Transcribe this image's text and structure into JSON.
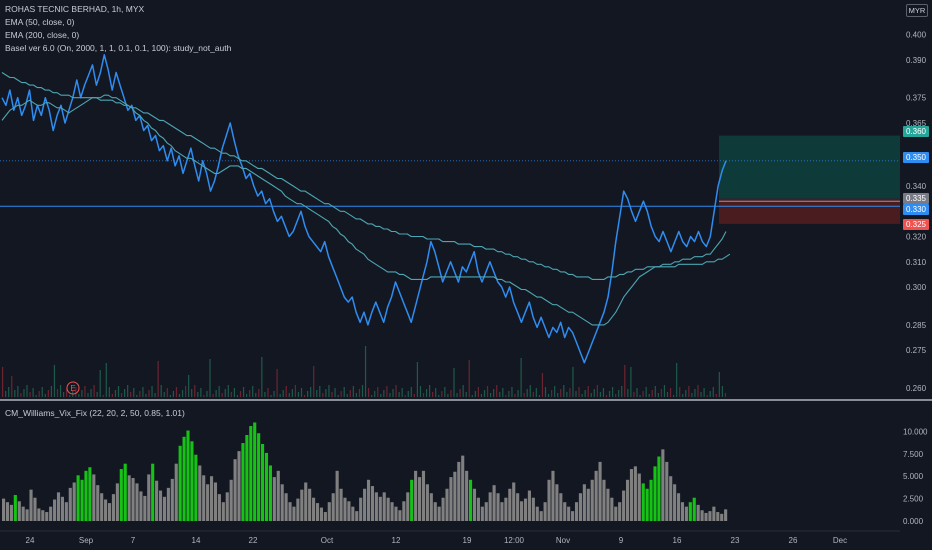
{
  "header": {
    "symbol_line": "ROHAS TECNIC BERHAD, 1h, MYX",
    "currency": "MYR",
    "studies": [
      "EMA (50, close, 0)",
      "EMA (200, close, 0)",
      "Basel ver 6.0 (On, 2000, 1, 1, 0.1, 0.1, 100): study_not_auth"
    ],
    "lower_study": "CM_Williams_Vix_Fix (22, 20, 2, 50, 0.85, 1.01)"
  },
  "colors": {
    "background": "#131722",
    "price_line": "#2f8cf0",
    "ema": "#4ca6b3",
    "horizontal_line": "#2f8cf0",
    "target_zone": "#0f3a3a",
    "stop_zone": "#4a1c1f",
    "vix_gray": "#808080",
    "vix_green": "#16c216",
    "volume_up": "#1e5a4a",
    "volume_down": "#6b2530"
  },
  "badges": [
    {
      "label": "0.360",
      "color": "#26a69a"
    },
    {
      "label": "0.350",
      "color": "#2f8cf0"
    },
    {
      "label": "0.335",
      "color": "#787b86"
    },
    {
      "label": "0.330",
      "color": "#2f8cf0"
    },
    {
      "label": "0.325",
      "color": "#ef5350"
    }
  ],
  "earnings_marker": "E",
  "chart_data": [
    {
      "type": "line",
      "name": "price",
      "y_axis_ticks": [
        "0.400",
        "0.390",
        "0.375",
        "0.365",
        "0.340",
        "0.320",
        "0.310",
        "0.300",
        "0.285",
        "0.275",
        "0.260"
      ],
      "x_axis_ticks": [
        "24",
        "Sep",
        "7",
        "14",
        "22",
        "Oct",
        "12",
        "19",
        "12:00",
        "Nov",
        "9",
        "16",
        "23",
        "26",
        "Dec"
      ],
      "ylim": [
        0.258,
        0.405
      ],
      "series": [
        {
          "name": "price",
          "values": [
            0.375,
            0.372,
            0.378,
            0.37,
            0.375,
            0.368,
            0.372,
            0.378,
            0.366,
            0.372,
            0.368,
            0.375,
            0.37,
            0.362,
            0.368,
            0.372,
            0.365,
            0.37,
            0.375,
            0.382,
            0.375,
            0.38,
            0.384,
            0.388,
            0.38,
            0.385,
            0.392,
            0.386,
            0.378,
            0.385,
            0.38,
            0.375,
            0.37,
            0.372,
            0.366,
            0.368,
            0.362,
            0.364,
            0.358,
            0.36,
            0.354,
            0.356,
            0.35,
            0.355,
            0.348,
            0.352,
            0.345,
            0.35,
            0.355,
            0.348,
            0.342,
            0.35,
            0.345,
            0.338,
            0.342,
            0.348,
            0.355,
            0.36,
            0.365,
            0.358,
            0.352,
            0.348,
            0.343,
            0.345,
            0.34,
            0.336,
            0.338,
            0.333,
            0.335,
            0.33,
            0.326,
            0.328,
            0.324,
            0.32,
            0.322,
            0.326,
            0.33,
            0.324,
            0.32,
            0.318,
            0.316,
            0.314,
            0.318,
            0.312,
            0.308,
            0.304,
            0.3,
            0.296,
            0.294,
            0.296,
            0.29,
            0.286,
            0.29,
            0.285,
            0.29,
            0.294,
            0.29,
            0.286,
            0.292,
            0.296,
            0.302,
            0.298,
            0.294,
            0.29,
            0.286,
            0.292,
            0.298,
            0.304,
            0.31,
            0.318,
            0.314,
            0.308,
            0.302,
            0.306,
            0.31,
            0.306,
            0.302,
            0.308,
            0.306,
            0.31,
            0.314,
            0.306,
            0.302,
            0.306,
            0.31,
            0.306,
            0.302,
            0.3,
            0.296,
            0.3,
            0.294,
            0.29,
            0.286,
            0.29,
            0.294,
            0.288,
            0.284,
            0.288,
            0.284,
            0.28,
            0.284,
            0.282,
            0.286,
            0.28,
            0.284,
            0.282,
            0.278,
            0.274,
            0.27,
            0.274,
            0.278,
            0.282,
            0.286,
            0.29,
            0.296,
            0.306,
            0.318,
            0.328,
            0.338,
            0.335,
            0.33,
            0.326,
            0.33,
            0.334,
            0.33,
            0.324,
            0.32,
            0.318,
            0.322,
            0.318,
            0.314,
            0.318,
            0.322,
            0.318,
            0.316,
            0.32,
            0.318,
            0.322,
            0.318,
            0.316,
            0.32,
            0.33,
            0.34,
            0.346,
            0.35
          ]
        },
        {
          "name": "EMA 50",
          "values": [
            0.366,
            0.368,
            0.37,
            0.371,
            0.372,
            0.372,
            0.373,
            0.374,
            0.373,
            0.372,
            0.372,
            0.373,
            0.373,
            0.372,
            0.371,
            0.371,
            0.37,
            0.369,
            0.37,
            0.371,
            0.372,
            0.373,
            0.374,
            0.375,
            0.375,
            0.375,
            0.376,
            0.376,
            0.375,
            0.375,
            0.374,
            0.373,
            0.372,
            0.371,
            0.369,
            0.368,
            0.366,
            0.365,
            0.363,
            0.362,
            0.36,
            0.359,
            0.357,
            0.356,
            0.354,
            0.353,
            0.352,
            0.351,
            0.351,
            0.35,
            0.349,
            0.348,
            0.347,
            0.346,
            0.345,
            0.345,
            0.346,
            0.347,
            0.348,
            0.348,
            0.348,
            0.347,
            0.347,
            0.346,
            0.345,
            0.344,
            0.343,
            0.342,
            0.341,
            0.34,
            0.339,
            0.338,
            0.336,
            0.335,
            0.334,
            0.333,
            0.333,
            0.332,
            0.331,
            0.33,
            0.329,
            0.328,
            0.327,
            0.326,
            0.324,
            0.323,
            0.321,
            0.32,
            0.318,
            0.317,
            0.315,
            0.314,
            0.313,
            0.311,
            0.31,
            0.309,
            0.308,
            0.307,
            0.306,
            0.306,
            0.306,
            0.305,
            0.305,
            0.304,
            0.303,
            0.303,
            0.303,
            0.303,
            0.303,
            0.304,
            0.304,
            0.304,
            0.304,
            0.304,
            0.304,
            0.304,
            0.304,
            0.304,
            0.304,
            0.304,
            0.304,
            0.304,
            0.304,
            0.304,
            0.304,
            0.304,
            0.303,
            0.303,
            0.302,
            0.302,
            0.301,
            0.3,
            0.299,
            0.299,
            0.298,
            0.297,
            0.296,
            0.296,
            0.295,
            0.294,
            0.293,
            0.293,
            0.292,
            0.291,
            0.29,
            0.29,
            0.289,
            0.288,
            0.287,
            0.286,
            0.285,
            0.285,
            0.285,
            0.285,
            0.286,
            0.288,
            0.29,
            0.293,
            0.296,
            0.298,
            0.3,
            0.302,
            0.304,
            0.305,
            0.306,
            0.307,
            0.308,
            0.308,
            0.309,
            0.309,
            0.309,
            0.31,
            0.31,
            0.311,
            0.311,
            0.311,
            0.312,
            0.312,
            0.312,
            0.313,
            0.313,
            0.315,
            0.317,
            0.319,
            0.322
          ]
        },
        {
          "name": "EMA 200",
          "values": [
            0.385,
            0.384,
            0.383,
            0.383,
            0.382,
            0.381,
            0.381,
            0.38,
            0.38,
            0.379,
            0.379,
            0.378,
            0.378,
            0.377,
            0.377,
            0.376,
            0.376,
            0.376,
            0.375,
            0.375,
            0.375,
            0.375,
            0.375,
            0.375,
            0.375,
            0.374,
            0.374,
            0.374,
            0.374,
            0.373,
            0.373,
            0.372,
            0.372,
            0.371,
            0.371,
            0.37,
            0.369,
            0.369,
            0.368,
            0.367,
            0.366,
            0.366,
            0.365,
            0.364,
            0.363,
            0.362,
            0.361,
            0.36,
            0.36,
            0.359,
            0.358,
            0.357,
            0.356,
            0.355,
            0.355,
            0.354,
            0.353,
            0.353,
            0.352,
            0.352,
            0.351,
            0.35,
            0.35,
            0.349,
            0.348,
            0.347,
            0.347,
            0.346,
            0.345,
            0.344,
            0.343,
            0.343,
            0.342,
            0.341,
            0.34,
            0.339,
            0.338,
            0.338,
            0.337,
            0.336,
            0.335,
            0.334,
            0.333,
            0.333,
            0.332,
            0.331,
            0.33,
            0.33,
            0.329,
            0.328,
            0.327,
            0.327,
            0.326,
            0.325,
            0.325,
            0.324,
            0.324,
            0.323,
            0.323,
            0.322,
            0.322,
            0.321,
            0.321,
            0.321,
            0.32,
            0.32,
            0.32,
            0.32,
            0.319,
            0.319,
            0.319,
            0.319,
            0.318,
            0.318,
            0.318,
            0.318,
            0.317,
            0.317,
            0.317,
            0.317,
            0.316,
            0.316,
            0.316,
            0.315,
            0.315,
            0.315,
            0.314,
            0.314,
            0.313,
            0.313,
            0.312,
            0.312,
            0.311,
            0.311,
            0.31,
            0.31,
            0.309,
            0.309,
            0.308,
            0.308,
            0.307,
            0.307,
            0.306,
            0.306,
            0.305,
            0.305,
            0.304,
            0.304,
            0.304,
            0.304,
            0.303,
            0.303,
            0.303,
            0.303,
            0.304,
            0.304,
            0.304,
            0.305,
            0.305,
            0.306,
            0.306,
            0.307,
            0.307,
            0.307,
            0.308,
            0.308,
            0.308,
            0.308,
            0.308,
            0.308,
            0.308,
            0.308,
            0.309,
            0.309,
            0.309,
            0.309,
            0.309,
            0.309,
            0.309,
            0.31,
            0.31,
            0.31,
            0.311,
            0.311,
            0.312,
            0.313
          ]
        }
      ],
      "horizontal_line": 0.332,
      "dotted_line": 0.35,
      "target_zone": [
        0.335,
        0.36
      ],
      "stop_zone": [
        0.325,
        0.335
      ]
    },
    {
      "type": "bar",
      "name": "CM_Williams_Vix_Fix",
      "y_axis_ticks": [
        "10.000",
        "7.500",
        "5.000",
        "2.500",
        "0.000"
      ],
      "ylim": [
        0,
        11.5
      ],
      "values": [
        2.5,
        2.1,
        1.8,
        2.9,
        2.2,
        1.6,
        1.3,
        3.5,
        2.6,
        1.4,
        1.2,
        1.0,
        1.6,
        2.4,
        3.2,
        2.7,
        2.1,
        3.7,
        4.3,
        5.1,
        4.6,
        5.6,
        6.0,
        5.2,
        4.0,
        3.1,
        2.4,
        2.0,
        3.0,
        4.2,
        5.8,
        6.4,
        5.1,
        4.8,
        4.2,
        3.3,
        2.8,
        5.2,
        6.4,
        4.5,
        3.4,
        2.7,
        3.7,
        4.7,
        6.4,
        8.4,
        9.4,
        10.1,
        8.9,
        7.4,
        6.2,
        5.1,
        4.1,
        5.0,
        4.3,
        3.0,
        2.1,
        3.2,
        4.6,
        6.9,
        7.8,
        8.7,
        9.6,
        10.6,
        11.0,
        9.8,
        8.6,
        7.6,
        6.2,
        4.9,
        5.6,
        4.1,
        3.1,
        2.1,
        1.6,
        2.5,
        3.5,
        4.3,
        3.6,
        2.6,
        2.0,
        1.5,
        1.0,
        2.1,
        3.1,
        5.6,
        3.6,
        2.6,
        2.2,
        1.6,
        1.1,
        2.6,
        3.6,
        4.6,
        3.9,
        3.2,
        2.7,
        3.2,
        2.6,
        2.1,
        1.6,
        1.2,
        2.2,
        3.2,
        4.6,
        5.6,
        4.9,
        5.6,
        4.1,
        3.1,
        2.1,
        1.6,
        2.6,
        3.6,
        4.9,
        5.5,
        6.6,
        7.3,
        5.6,
        4.6,
        3.6,
        2.6,
        1.6,
        2.1,
        3.2,
        4.0,
        3.1,
        2.1,
        2.6,
        3.6,
        4.3,
        3.1,
        2.2,
        2.5,
        3.4,
        2.6,
        1.6,
        1.1,
        2.1,
        4.6,
        5.6,
        4.1,
        3.1,
        2.1,
        1.6,
        1.1,
        2.1,
        3.1,
        4.1,
        3.6,
        4.6,
        5.6,
        6.6,
        4.6,
        3.6,
        2.6,
        1.6,
        2.1,
        3.4,
        4.6,
        5.8,
        6.1,
        5.3,
        4.2,
        3.6,
        4.6,
        6.1,
        7.2,
        8.0,
        6.6,
        5.0,
        4.1,
        3.1,
        2.1,
        1.6,
        2.1,
        2.6,
        1.8,
        1.2,
        0.9,
        1.1,
        1.6,
        1.0,
        0.8,
        1.3
      ],
      "green_indices": [
        3,
        19,
        20,
        21,
        22,
        30,
        31,
        38,
        45,
        46,
        47,
        48,
        49,
        61,
        62,
        63,
        64,
        65,
        66,
        67,
        68,
        104,
        119,
        163,
        164,
        165,
        166,
        167,
        175,
        176
      ]
    }
  ]
}
